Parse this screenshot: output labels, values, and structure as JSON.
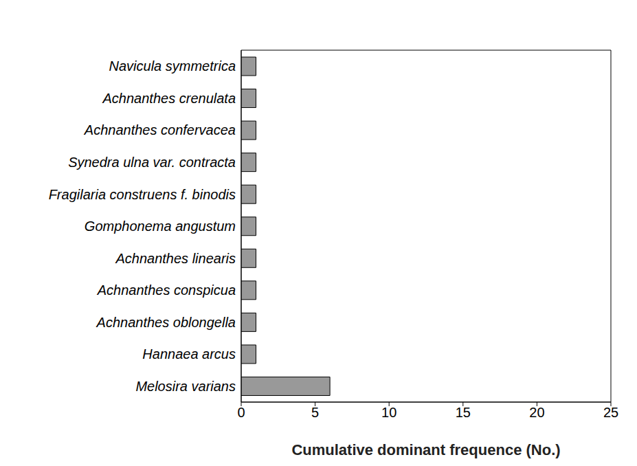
{
  "chart_data": {
    "type": "bar",
    "orientation": "horizontal",
    "x_label": "Cumulative dominant frequence (No.)",
    "categories": [
      "Navicula symmetrica",
      "Achnanthes crenulata",
      "Achnanthes confervacea",
      "Synedra ulna var. contracta",
      "Fragilaria construens f. binodis",
      "Gomphonema angustum",
      "Achnanthes linearis",
      "Achnanthes conspicua",
      "Achnanthes oblongella",
      "Hannaea arcus",
      "Melosira varians"
    ],
    "values": [
      1,
      1,
      1,
      1,
      1,
      1,
      1,
      1,
      1,
      1,
      6
    ],
    "color": "#999999",
    "xlim": [
      0,
      25
    ],
    "xticks": [
      0,
      5,
      10,
      15,
      20,
      25
    ],
    "grid": false
  }
}
